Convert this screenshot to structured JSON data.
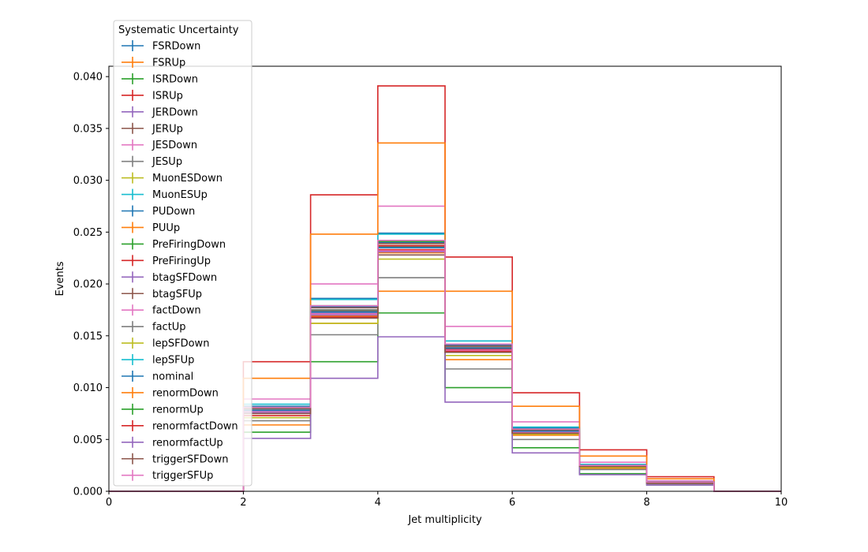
{
  "chart_data": {
    "type": "line",
    "style": "step-histogram",
    "xlabel": "Jet multiplicity",
    "ylabel": "Events",
    "xlim": [
      0,
      10
    ],
    "ylim": [
      0,
      0.041
    ],
    "x_ticks": [
      "0",
      "2",
      "4",
      "6",
      "8",
      "10"
    ],
    "y_ticks": [
      "0.000",
      "0.005",
      "0.010",
      "0.015",
      "0.020",
      "0.025",
      "0.030",
      "0.035",
      "0.040"
    ],
    "bin_edges": [
      0,
      1,
      2,
      3,
      4,
      5,
      6,
      7,
      8,
      9,
      10
    ],
    "grid": false,
    "legend": {
      "title": "Systematic Uncertainty",
      "placement": "upper-left"
    },
    "series": [
      {
        "name": "FSRDown",
        "color": "#1f77b4",
        "values": [
          0,
          0,
          0.0082,
          0.0186,
          0.0249,
          0.0145,
          0.0061,
          0.0026,
          0.0009,
          0
        ]
      },
      {
        "name": "FSRUp",
        "color": "#ff7f0e",
        "values": [
          0,
          0,
          0.0064,
          0.0162,
          0.0193,
          0.0127,
          0.0054,
          0.0022,
          0.0008,
          0
        ]
      },
      {
        "name": "ISRDown",
        "color": "#2ca02c",
        "values": [
          0,
          0,
          0.0057,
          0.0125,
          0.0172,
          0.01,
          0.0042,
          0.0017,
          0.0006,
          0
        ]
      },
      {
        "name": "ISRUp",
        "color": "#d62728",
        "values": [
          0,
          0,
          0.0125,
          0.0286,
          0.0391,
          0.0226,
          0.0095,
          0.004,
          0.0014,
          0
        ]
      },
      {
        "name": "JERDown",
        "color": "#9467bd",
        "values": [
          0,
          0,
          0.0077,
          0.0172,
          0.0233,
          0.0138,
          0.0058,
          0.0025,
          0.0009,
          0
        ]
      },
      {
        "name": "JERUp",
        "color": "#8c564b",
        "values": [
          0,
          0,
          0.0079,
          0.0174,
          0.0236,
          0.0139,
          0.0059,
          0.0025,
          0.0009,
          0
        ]
      },
      {
        "name": "JESDown",
        "color": "#e377c2",
        "values": [
          0,
          0,
          0.0089,
          0.02,
          0.0275,
          0.0159,
          0.0067,
          0.0028,
          0.001,
          0
        ]
      },
      {
        "name": "JESUp",
        "color": "#7f7f7f",
        "values": [
          0,
          0,
          0.0068,
          0.0151,
          0.0206,
          0.0118,
          0.005,
          0.0021,
          0.0007,
          0
        ]
      },
      {
        "name": "MuonESDown",
        "color": "#bcbd22",
        "values": [
          0,
          0,
          0.0078,
          0.0173,
          0.0235,
          0.0138,
          0.0058,
          0.0025,
          0.0009,
          0
        ]
      },
      {
        "name": "MuonESUp",
        "color": "#17becf",
        "values": [
          0,
          0,
          0.0078,
          0.0173,
          0.0235,
          0.0138,
          0.0058,
          0.0025,
          0.0009,
          0
        ]
      },
      {
        "name": "PUDown",
        "color": "#1f77b4",
        "values": [
          0,
          0,
          0.008,
          0.0178,
          0.024,
          0.0141,
          0.0059,
          0.0025,
          0.0009,
          0
        ]
      },
      {
        "name": "PUUp",
        "color": "#ff7f0e",
        "values": [
          0,
          0,
          0.0076,
          0.0169,
          0.023,
          0.0135,
          0.0057,
          0.0024,
          0.0008,
          0
        ]
      },
      {
        "name": "PreFiringDown",
        "color": "#2ca02c",
        "values": [
          0,
          0,
          0.0079,
          0.0175,
          0.0237,
          0.0139,
          0.0058,
          0.0025,
          0.0009,
          0
        ]
      },
      {
        "name": "PreFiringUp",
        "color": "#d62728",
        "values": [
          0,
          0,
          0.0077,
          0.0171,
          0.0233,
          0.0137,
          0.0057,
          0.0024,
          0.0009,
          0
        ]
      },
      {
        "name": "btagSFDown",
        "color": "#9467bd",
        "values": [
          0,
          0,
          0.0076,
          0.017,
          0.0231,
          0.0136,
          0.0057,
          0.0024,
          0.0008,
          0
        ]
      },
      {
        "name": "btagSFUp",
        "color": "#8c564b",
        "values": [
          0,
          0,
          0.008,
          0.0177,
          0.0239,
          0.014,
          0.0059,
          0.0025,
          0.0009,
          0
        ]
      },
      {
        "name": "factDown",
        "color": "#e377c2",
        "values": [
          0,
          0,
          0.0077,
          0.0171,
          0.0232,
          0.0136,
          0.0057,
          0.0024,
          0.0008,
          0
        ]
      },
      {
        "name": "factUp",
        "color": "#7f7f7f",
        "values": [
          0,
          0,
          0.0079,
          0.0175,
          0.0237,
          0.0139,
          0.0058,
          0.0025,
          0.0009,
          0
        ]
      },
      {
        "name": "lepSFDown",
        "color": "#bcbd22",
        "values": [
          0,
          0,
          0.0071,
          0.0162,
          0.0224,
          0.0131,
          0.0055,
          0.0023,
          0.0008,
          0
        ]
      },
      {
        "name": "lepSFUp",
        "color": "#17becf",
        "values": [
          0,
          0,
          0.0084,
          0.0185,
          0.0248,
          0.0145,
          0.0062,
          0.0026,
          0.0009,
          0
        ]
      },
      {
        "name": "nominal",
        "color": "#1f77b4",
        "values": [
          0,
          0,
          0.0078,
          0.0173,
          0.0235,
          0.0138,
          0.0058,
          0.0025,
          0.0009,
          0
        ]
      },
      {
        "name": "renormDown",
        "color": "#ff7f0e",
        "values": [
          0,
          0,
          0.0109,
          0.0248,
          0.0336,
          0.0193,
          0.0082,
          0.0034,
          0.0012,
          0
        ]
      },
      {
        "name": "renormUp",
        "color": "#2ca02c",
        "values": [
          0,
          0,
          0.0081,
          0.0179,
          0.0241,
          0.0142,
          0.006,
          0.0025,
          0.0009,
          0
        ]
      },
      {
        "name": "renormfactDown",
        "color": "#d62728",
        "values": [
          0,
          0,
          0.0073,
          0.0168,
          0.0237,
          0.0135,
          0.0056,
          0.0024,
          0.0008,
          0
        ]
      },
      {
        "name": "renormfactUp",
        "color": "#9467bd",
        "values": [
          0,
          0,
          0.0051,
          0.0109,
          0.0149,
          0.0086,
          0.0037,
          0.0016,
          0.0006,
          0
        ]
      },
      {
        "name": "triggerSFDown",
        "color": "#8c564b",
        "values": [
          0,
          0,
          0.0075,
          0.0167,
          0.0228,
          0.0134,
          0.0056,
          0.0024,
          0.0008,
          0
        ]
      },
      {
        "name": "triggerSFUp",
        "color": "#e377c2",
        "values": [
          0,
          0,
          0.0081,
          0.0179,
          0.0242,
          0.0142,
          0.006,
          0.0025,
          0.0009,
          0
        ]
      }
    ]
  }
}
